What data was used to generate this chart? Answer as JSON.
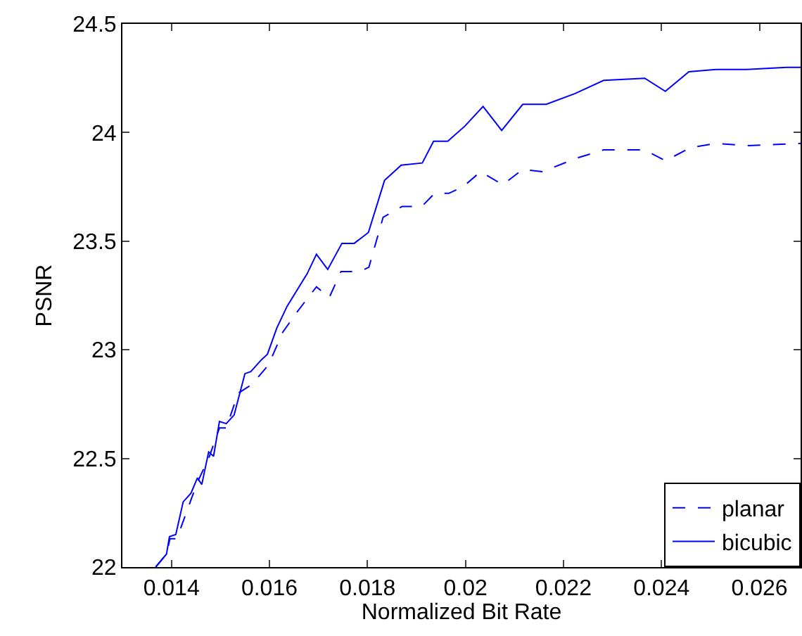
{
  "chart_data": {
    "type": "line",
    "xlabel": "Normalized Bit Rate",
    "ylabel": "PSNR",
    "xlim": [
      0.013,
      0.02684
    ],
    "xticks": [
      0.014,
      0.016,
      0.018,
      0.02,
      0.022,
      0.024,
      0.026
    ],
    "ylim": [
      22,
      24.5
    ],
    "yticks": [
      22,
      22.5,
      23,
      23.5,
      24,
      24.5
    ],
    "grid": false,
    "legend": "bottom right",
    "marker": "none",
    "series": [
      {
        "name": "planar",
        "color": "#0000ff",
        "line_style": "dashed",
        "x": [
          0.01368,
          0.0139,
          0.01397,
          0.01411,
          0.01453,
          0.01476,
          0.01498,
          0.01512,
          0.01536,
          0.01564,
          0.01598,
          0.01627,
          0.01655,
          0.01696,
          0.01722,
          0.01746,
          0.01784,
          0.01803,
          0.01832,
          0.01871,
          0.01911,
          0.01937,
          0.01966,
          0.01995,
          0.02031,
          0.02076,
          0.02117,
          0.02158,
          0.02224,
          0.02282,
          0.02366,
          0.02408,
          0.02459,
          0.02511,
          0.02578,
          0.02684
        ],
        "values": [
          22.0,
          22.06,
          22.13,
          22.13,
          22.39,
          22.5,
          22.64,
          22.64,
          22.8,
          22.84,
          22.93,
          23.08,
          23.17,
          23.29,
          23.24,
          23.36,
          23.36,
          23.38,
          23.61,
          23.66,
          23.66,
          23.72,
          23.72,
          23.75,
          23.82,
          23.76,
          23.83,
          23.82,
          23.88,
          23.92,
          23.92,
          23.87,
          23.93,
          23.95,
          23.94,
          23.95
        ]
      },
      {
        "name": "bicubic",
        "color": "#0000ff",
        "line_style": "solid",
        "x": [
          0.01368,
          0.0139,
          0.01396,
          0.01409,
          0.01424,
          0.0144,
          0.01453,
          0.01462,
          0.01476,
          0.01486,
          0.01498,
          0.01512,
          0.01528,
          0.0155,
          0.01562,
          0.01582,
          0.01596,
          0.01615,
          0.01636,
          0.01677,
          0.01696,
          0.01719,
          0.01748,
          0.01773,
          0.01802,
          0.01835,
          0.01869,
          0.01912,
          0.01935,
          0.01964,
          0.01999,
          0.02036,
          0.02074,
          0.02117,
          0.02165,
          0.02224,
          0.02282,
          0.02366,
          0.02408,
          0.02456,
          0.02511,
          0.02574,
          0.02655,
          0.02684
        ],
        "values": [
          22.0,
          22.06,
          22.14,
          22.15,
          22.3,
          22.34,
          22.41,
          22.38,
          22.53,
          22.51,
          22.67,
          22.66,
          22.7,
          22.89,
          22.9,
          22.95,
          22.98,
          23.1,
          23.2,
          23.35,
          23.44,
          23.37,
          23.49,
          23.49,
          23.54,
          23.78,
          23.85,
          23.86,
          23.96,
          23.96,
          24.03,
          24.12,
          24.01,
          24.13,
          24.13,
          24.18,
          24.24,
          24.25,
          24.19,
          24.28,
          24.29,
          24.29,
          24.3,
          24.3
        ]
      }
    ]
  }
}
